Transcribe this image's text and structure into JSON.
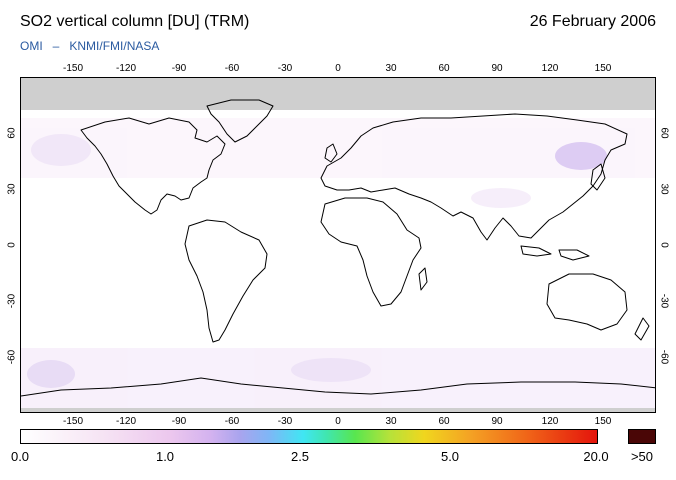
{
  "header": {
    "title": "SO2 vertical column [DU] (TRM)",
    "date": "26 February 2006",
    "credit_left": "OMI",
    "credit_sep": "–",
    "credit_right": "KNMI/FMI/NASA"
  },
  "map": {
    "projection": "equirectangular",
    "lon_range": [
      -180,
      180
    ],
    "lat_range": [
      -90,
      90
    ],
    "lon_ticks": [
      "-150",
      "-120",
      "-90",
      "-60",
      "-30",
      "0",
      "30",
      "60",
      "90",
      "120",
      "150"
    ],
    "lat_ticks": [
      "60",
      "30",
      "0",
      "-30",
      "-60"
    ],
    "no_data_color": "#cfcfcf",
    "coastline_color": "#000000",
    "background_color": "#ffffff"
  },
  "colorbar": {
    "labels": [
      "0.0",
      "1.0",
      "2.5",
      "5.0",
      "20.0"
    ],
    "over_label": ">50",
    "over_color": "#4a0606",
    "unit": "DU"
  }
}
